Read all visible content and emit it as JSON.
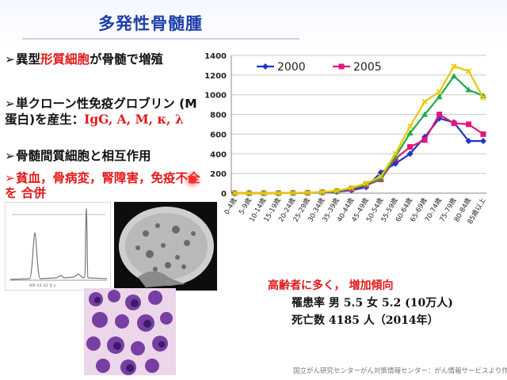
{
  "slide": {
    "title": "多発性骨髄腫",
    "bullets": [
      {
        "mark": "➢",
        "parts": [
          {
            "t": "異型",
            "c": ""
          },
          {
            "t": "形質細胞",
            "c": "red"
          },
          {
            "t": "が骨髄で増殖",
            "c": ""
          }
        ]
      },
      {
        "mark": "➢",
        "parts": [
          {
            "t": "単クローン性免疫グロブリン (M蛋白)を産生：",
            "c": ""
          },
          {
            "t": "IgG, A, M, κ, λ",
            "c": "red serif"
          }
        ]
      },
      {
        "mark": "➢",
        "parts": [
          {
            "t": "骨髄間質細胞と相互作用",
            "c": ""
          }
        ]
      },
      {
        "mark": "➢",
        "parts": [
          {
            "t": "貧血，骨病変，腎障害，免疫不全を 合併",
            "c": ""
          }
        ]
      }
    ],
    "notes": {
      "line1": "高齢者に多く， 増加傾向",
      "line2": "罹患率 男 5.5 女 5.2 (10万人)",
      "line3": "死亡数 4185 人（2014年）"
    },
    "source": "国立がん研究センターがん対策情報センター：がん情報サービスより作成"
  },
  "chart_data": {
    "type": "line",
    "categories": [
      "0-4歳",
      "5-9歳",
      "10-14歳",
      "15-19歳",
      "20-24歳",
      "25-29歳",
      "30-34歳",
      "35-39歳",
      "40-44歳",
      "45-49歳",
      "50-54歳",
      "55-59歳",
      "60-64歳",
      "65-69歳",
      "70-74歳",
      "75-79歳",
      "80-84歳",
      "85歳以上"
    ],
    "ylim": [
      0,
      1400
    ],
    "yticks": [
      0,
      200,
      400,
      600,
      800,
      1000,
      1200,
      1400
    ],
    "series": [
      {
        "name": "2000",
        "color": "#1c37c9",
        "marker": "diamond",
        "legend": true,
        "values": [
          0,
          0,
          0,
          0,
          2,
          4,
          8,
          15,
          30,
          60,
          210,
          300,
          400,
          570,
          760,
          720,
          530,
          530
        ]
      },
      {
        "name": "2005",
        "color": "#e0177c",
        "marker": "square",
        "legend": true,
        "values": [
          0,
          0,
          0,
          0,
          2,
          4,
          10,
          20,
          40,
          80,
          140,
          350,
          470,
          540,
          800,
          710,
          700,
          600
        ]
      },
      {
        "name": "",
        "color": "#22aa4a",
        "marker": "triangle",
        "legend": false,
        "values": [
          0,
          0,
          0,
          0,
          2,
          5,
          10,
          20,
          50,
          90,
          150,
          370,
          610,
          800,
          980,
          1190,
          1050,
          990
        ]
      },
      {
        "name": "",
        "color": "#e8c800",
        "marker": "cross",
        "legend": false,
        "values": [
          0,
          0,
          0,
          0,
          2,
          5,
          12,
          25,
          55,
          100,
          170,
          400,
          680,
          930,
          1030,
          1290,
          1240,
          970
        ]
      }
    ]
  }
}
